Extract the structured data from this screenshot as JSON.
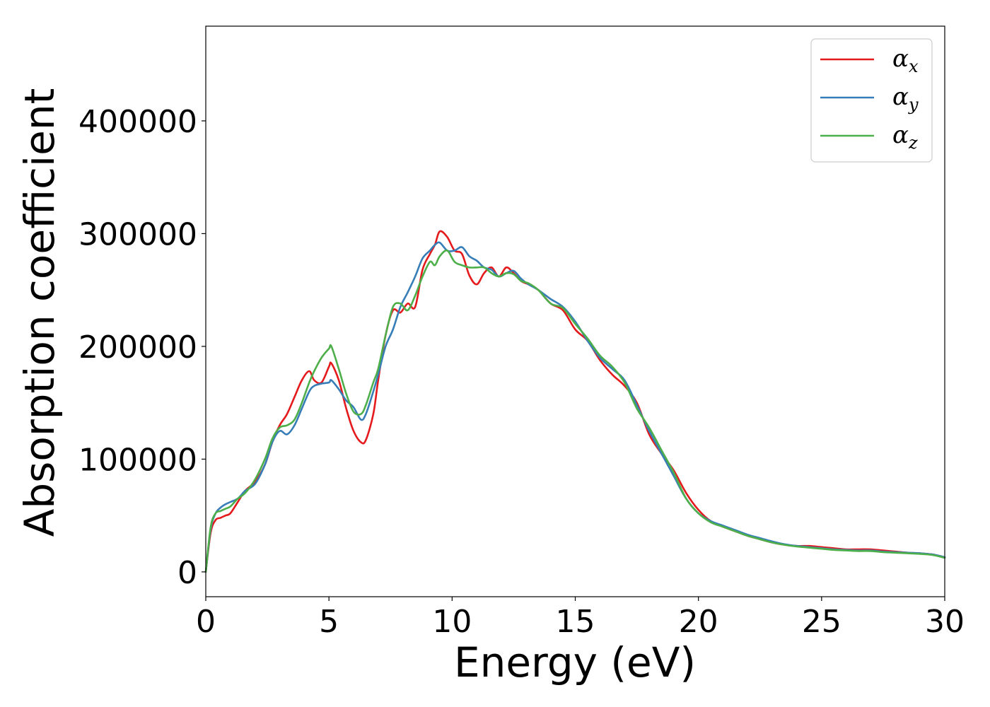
{
  "chart_data": {
    "type": "line",
    "xlabel": "Energy (eV)",
    "ylabel": "Absorption coefficient",
    "xlim": [
      0,
      30
    ],
    "ylim": [
      -22000,
      484000
    ],
    "xticks": [
      "0",
      "5",
      "10",
      "15",
      "20",
      "25",
      "30"
    ],
    "yticks": [
      "0",
      "100000",
      "200000",
      "300000",
      "400000"
    ],
    "grid": false,
    "legend_position": "top-right",
    "series": [
      {
        "name": "α",
        "subscript": "x",
        "color": "#e41a1c",
        "x": [
          0,
          0.2,
          0.4,
          0.6,
          0.8,
          1.0,
          1.3,
          1.6,
          2.0,
          2.4,
          2.7,
          3.0,
          3.3,
          3.6,
          3.9,
          4.2,
          4.4,
          4.7,
          5.0,
          5.1,
          5.4,
          5.7,
          6.0,
          6.3,
          6.5,
          6.8,
          7.0,
          7.3,
          7.6,
          7.9,
          8.2,
          8.5,
          8.8,
          9.1,
          9.3,
          9.5,
          9.8,
          10.1,
          10.4,
          10.7,
          11.0,
          11.3,
          11.6,
          11.9,
          12.2,
          12.5,
          12.8,
          13.1,
          13.5,
          14.0,
          14.5,
          15.0,
          15.5,
          16.0,
          16.5,
          17.0,
          17.5,
          18.0,
          18.5,
          19.0,
          19.5,
          20.0,
          20.5,
          21.0,
          21.5,
          22.0,
          22.5,
          23.0,
          23.5,
          24.0,
          24.5,
          25.0,
          25.5,
          26.0,
          26.5,
          27.0,
          27.5,
          28.0,
          28.5,
          29.0,
          29.5,
          30.0
        ],
        "values": [
          0,
          35000,
          46000,
          48000,
          50000,
          52000,
          62000,
          72000,
          80000,
          95000,
          115000,
          130000,
          140000,
          155000,
          170000,
          178000,
          170000,
          168000,
          182000,
          185000,
          170000,
          145000,
          125000,
          115000,
          117000,
          140000,
          170000,
          210000,
          232000,
          230000,
          238000,
          235000,
          268000,
          282000,
          290000,
          302000,
          297000,
          285000,
          282000,
          263000,
          255000,
          265000,
          270000,
          262000,
          270000,
          265000,
          258000,
          255000,
          250000,
          238000,
          232000,
          215000,
          205000,
          188000,
          175000,
          165000,
          150000,
          122000,
          105000,
          90000,
          70000,
          55000,
          45000,
          40000,
          36000,
          32000,
          29000,
          26000,
          24000,
          23000,
          23000,
          22000,
          21000,
          20000,
          20000,
          20000,
          19000,
          18000,
          17000,
          16500,
          15500,
          13000
        ]
      },
      {
        "name": "α",
        "subscript": "y",
        "color": "#377eb8",
        "x": [
          0,
          0.2,
          0.4,
          0.6,
          0.8,
          1.0,
          1.3,
          1.6,
          2.0,
          2.4,
          2.7,
          3.0,
          3.3,
          3.6,
          3.9,
          4.2,
          4.4,
          4.7,
          5.0,
          5.1,
          5.4,
          5.7,
          6.0,
          6.3,
          6.5,
          6.8,
          7.0,
          7.3,
          7.6,
          7.9,
          8.2,
          8.5,
          8.8,
          9.1,
          9.3,
          9.5,
          9.8,
          10.1,
          10.4,
          10.7,
          11.0,
          11.3,
          11.6,
          11.9,
          12.2,
          12.5,
          12.8,
          13.1,
          13.5,
          14.0,
          14.5,
          15.0,
          15.5,
          16.0,
          16.5,
          17.0,
          17.5,
          18.0,
          18.5,
          19.0,
          19.5,
          20.0,
          20.5,
          21.0,
          21.5,
          22.0,
          22.5,
          23.0,
          23.5,
          24.0,
          24.5,
          25.0,
          25.5,
          26.0,
          26.5,
          27.0,
          27.5,
          28.0,
          28.5,
          29.0,
          29.5,
          30.0
        ],
        "values": [
          0,
          38000,
          52000,
          57000,
          60000,
          62000,
          65000,
          72000,
          78000,
          95000,
          115000,
          125000,
          122000,
          130000,
          145000,
          160000,
          165000,
          167000,
          168000,
          170000,
          162000,
          152000,
          146000,
          135000,
          140000,
          160000,
          175000,
          200000,
          215000,
          235000,
          248000,
          262000,
          278000,
          285000,
          290000,
          292000,
          285000,
          285000,
          288000,
          280000,
          276000,
          270000,
          268000,
          262000,
          265000,
          267000,
          260000,
          255000,
          250000,
          242000,
          235000,
          222000,
          205000,
          190000,
          180000,
          170000,
          148000,
          125000,
          105000,
          85000,
          65000,
          52000,
          45000,
          41000,
          37000,
          33000,
          30000,
          27000,
          24500,
          23000,
          22000,
          21000,
          20000,
          19500,
          19000,
          19000,
          18000,
          17500,
          17000,
          16500,
          15500,
          13000
        ]
      },
      {
        "name": "α",
        "subscript": "z",
        "color": "#4daf4a",
        "x": [
          0,
          0.2,
          0.4,
          0.6,
          0.8,
          1.0,
          1.3,
          1.6,
          2.0,
          2.4,
          2.7,
          3.0,
          3.3,
          3.6,
          3.9,
          4.2,
          4.4,
          4.7,
          5.0,
          5.1,
          5.4,
          5.7,
          6.0,
          6.3,
          6.5,
          6.8,
          7.0,
          7.3,
          7.6,
          7.9,
          8.2,
          8.5,
          8.8,
          9.1,
          9.3,
          9.5,
          9.8,
          10.1,
          10.4,
          10.7,
          11.0,
          11.3,
          11.6,
          11.9,
          12.2,
          12.5,
          12.8,
          13.1,
          13.5,
          14.0,
          14.5,
          15.0,
          15.5,
          16.0,
          16.5,
          17.0,
          17.5,
          18.0,
          18.5,
          19.0,
          19.5,
          20.0,
          20.5,
          21.0,
          21.5,
          22.0,
          22.5,
          23.0,
          23.5,
          24.0,
          24.5,
          25.0,
          25.5,
          26.0,
          26.5,
          27.0,
          27.5,
          28.0,
          28.5,
          29.0,
          29.5,
          30.0
        ],
        "values": [
          0,
          40000,
          52000,
          54000,
          56000,
          58000,
          65000,
          70000,
          82000,
          100000,
          118000,
          128000,
          130000,
          135000,
          150000,
          168000,
          178000,
          190000,
          198000,
          200000,
          180000,
          158000,
          142000,
          140000,
          148000,
          168000,
          180000,
          210000,
          235000,
          238000,
          232000,
          245000,
          262000,
          275000,
          272000,
          280000,
          285000,
          275000,
          272000,
          270000,
          270000,
          270000,
          265000,
          262000,
          265000,
          264000,
          258000,
          256000,
          250000,
          238000,
          234000,
          220000,
          207000,
          192000,
          182000,
          168000,
          145000,
          128000,
          108000,
          88000,
          65000,
          52000,
          44000,
          40000,
          36000,
          32000,
          29000,
          26000,
          24000,
          22500,
          21500,
          20500,
          19500,
          19000,
          18500,
          18500,
          17500,
          17000,
          16500,
          16000,
          15000,
          12500
        ]
      }
    ]
  }
}
